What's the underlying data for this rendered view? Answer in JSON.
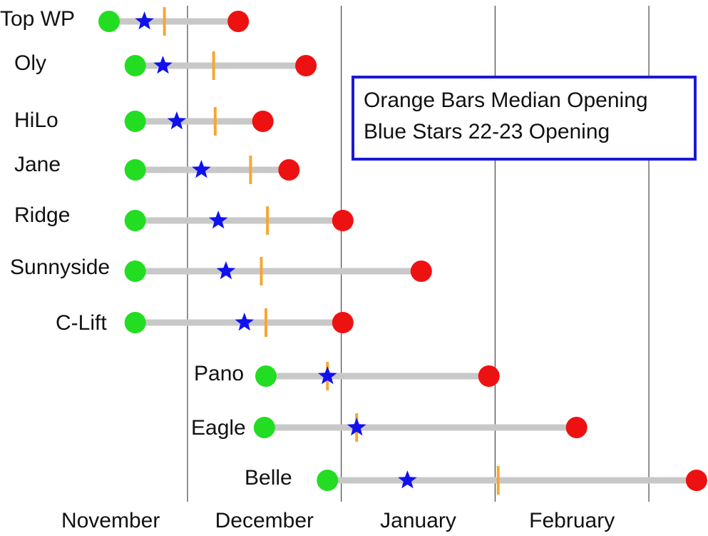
{
  "chart_data": {
    "type": "dumbbell",
    "categories": [
      "Top WP",
      "Oly",
      "HiLo",
      "Jane",
      "Ridge",
      "Sunnyside",
      "C-Lift",
      "Pano",
      "Eagle",
      "Belle"
    ],
    "series": [
      {
        "color": "#22dd22",
        "values": [
          0.49,
          0.66,
          0.66,
          0.66,
          0.66,
          0.66,
          0.66,
          1.51,
          1.5,
          1.91
        ]
      },
      {
        "color": "#ee1111",
        "values": [
          1.33,
          1.77,
          1.49,
          1.66,
          2.01,
          2.52,
          2.01,
          2.96,
          3.53,
          4.31
        ]
      },
      {
        "name": "Orange Bars Median Opening",
        "color": "#f5a733",
        "values": [
          0.85,
          1.17,
          1.18,
          1.41,
          1.52,
          1.48,
          1.51,
          1.91,
          2.1,
          3.02
        ]
      },
      {
        "name": "Blue Stars 22-23 Opening",
        "color": "#1111ee",
        "values": [
          0.72,
          0.84,
          0.93,
          1.09,
          1.2,
          1.25,
          1.37,
          1.91,
          2.1,
          2.43
        ]
      }
    ],
    "range_color": "#c8c8c8",
    "xlim": [
      0,
      4.38
    ],
    "xticks": [
      {
        "value": 0.5,
        "label": "November"
      },
      {
        "value": 1.5,
        "label": "December"
      },
      {
        "value": 2.5,
        "label": "January"
      },
      {
        "value": 3.5,
        "label": "February"
      }
    ],
    "xgrid": [
      1,
      2,
      3,
      4
    ]
  }
}
